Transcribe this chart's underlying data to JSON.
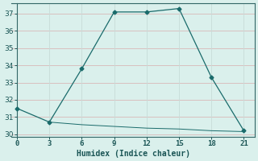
{
  "xlabel": "Humidex (Indice chaleur)",
  "line1_x": [
    0,
    3,
    6,
    9,
    12,
    15,
    18,
    21
  ],
  "line1_y": [
    31.5,
    30.7,
    33.8,
    37.1,
    37.1,
    37.3,
    33.3,
    30.2
  ],
  "line2_x": [
    3,
    6,
    9,
    12,
    15,
    18,
    21
  ],
  "line2_y": [
    30.7,
    30.55,
    30.45,
    30.35,
    30.3,
    30.2,
    30.15
  ],
  "line_color": "#1a6b6b",
  "marker": "D",
  "markersize": 2.5,
  "xlim": [
    -0.5,
    22
  ],
  "ylim": [
    29.85,
    37.6
  ],
  "yticks": [
    30,
    31,
    32,
    33,
    34,
    35,
    36,
    37
  ],
  "xticks": [
    0,
    3,
    6,
    9,
    12,
    15,
    18,
    21
  ],
  "bg_color": "#daf0ec",
  "grid_color_h": "#d8b8b8",
  "grid_color_v": "#c8dcd8",
  "font_color": "#1a5555",
  "spine_color": "#336666"
}
